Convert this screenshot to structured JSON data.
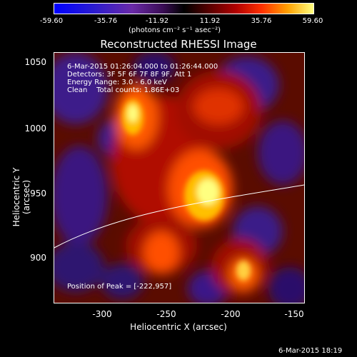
{
  "colorbar": {
    "ticks": [
      "-59.60",
      "-35.76",
      "-11.92",
      "11.92",
      "35.76",
      "59.60"
    ],
    "unit_label": "(photons cm⁻² s⁻¹ asec⁻²)"
  },
  "title": "Reconstructed RHESSI Image",
  "annotations": {
    "time_range": "6-Mar-2015 01:26:04.000 to 01:26:44.000",
    "detectors": "Detectors: 3F 5F 6F 7F 8F 9F, Att 1",
    "energy": "Energy Range: 3.0 - 6.0 keV",
    "clean": "Clean    Total counts: 1.86E+03",
    "peak": "Position of Peak = [-222,957]"
  },
  "axes": {
    "xlabel": "Heliocentric X (arcsec)",
    "ylabel": "Heliocentric Y (arcsec)",
    "xticks": [
      "-300",
      "-250",
      "-200",
      "-150"
    ],
    "yticks": [
      "1050",
      "1000",
      "950",
      "900"
    ]
  },
  "timestamp": "6-Mar-2015 18:19"
}
